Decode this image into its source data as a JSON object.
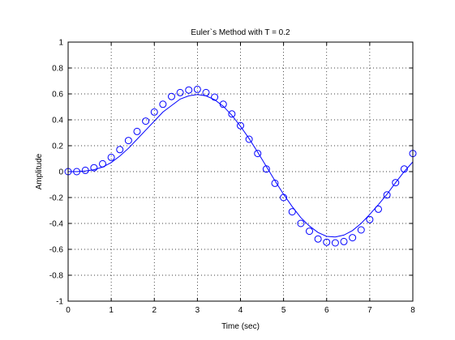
{
  "chart_data": {
    "type": "line",
    "title": "Euler`s Method with T = 0.2",
    "xlabel": "Time (sec)",
    "ylabel": "Amplitude",
    "xlim": [
      0,
      8
    ],
    "ylim": [
      -1,
      1
    ],
    "xticks": [
      "0",
      "1",
      "2",
      "3",
      "4",
      "5",
      "6",
      "7",
      "8"
    ],
    "yticks": [
      "1",
      "0.8",
      "0.6",
      "0.4",
      "0.2",
      "0",
      "-0.2",
      "-0.4",
      "-0.6",
      "-0.8",
      "-1"
    ],
    "grid": true,
    "line_color": "#0000ff",
    "series": [
      {
        "style": "line",
        "x": [
          0,
          0.2,
          0.4,
          0.6,
          0.8,
          1.0,
          1.2,
          1.4,
          1.6,
          1.8,
          2.0,
          2.2,
          2.4,
          2.6,
          2.8,
          3.0,
          3.2,
          3.4,
          3.6,
          3.8,
          4.0,
          4.2,
          4.4,
          4.6,
          4.8,
          5.0,
          5.2,
          5.4,
          5.6,
          5.8,
          6.0,
          6.2,
          6.4,
          6.6,
          6.8,
          7.0,
          7.2,
          7.4,
          7.6,
          7.8,
          8.0
        ],
        "y": [
          0,
          0.0,
          0.005,
          0.015,
          0.035,
          0.07,
          0.12,
          0.18,
          0.25,
          0.32,
          0.39,
          0.46,
          0.51,
          0.56,
          0.585,
          0.595,
          0.585,
          0.555,
          0.505,
          0.435,
          0.35,
          0.255,
          0.15,
          0.04,
          -0.07,
          -0.175,
          -0.27,
          -0.355,
          -0.42,
          -0.47,
          -0.5,
          -0.505,
          -0.49,
          -0.455,
          -0.4,
          -0.33,
          -0.255,
          -0.175,
          -0.085,
          0.0,
          0.075
        ]
      },
      {
        "style": "markers",
        "x": [
          0,
          0.2,
          0.4,
          0.6,
          0.8,
          1.0,
          1.2,
          1.4,
          1.6,
          1.8,
          2.0,
          2.2,
          2.4,
          2.6,
          2.8,
          3.0,
          3.2,
          3.4,
          3.6,
          3.8,
          4.0,
          4.2,
          4.4,
          4.6,
          4.8,
          5.0,
          5.2,
          5.4,
          5.6,
          5.8,
          6.0,
          6.2,
          6.4,
          6.6,
          6.8,
          7.0,
          7.2,
          7.4,
          7.6,
          7.8,
          8.0
        ],
        "y": [
          0,
          0.0,
          0.01,
          0.03,
          0.06,
          0.11,
          0.17,
          0.24,
          0.31,
          0.39,
          0.46,
          0.52,
          0.58,
          0.61,
          0.63,
          0.635,
          0.61,
          0.575,
          0.52,
          0.445,
          0.355,
          0.25,
          0.14,
          0.02,
          -0.09,
          -0.2,
          -0.31,
          -0.4,
          -0.46,
          -0.52,
          -0.545,
          -0.55,
          -0.54,
          -0.51,
          -0.45,
          -0.37,
          -0.29,
          -0.18,
          -0.085,
          0.02,
          0.14
        ]
      }
    ]
  }
}
